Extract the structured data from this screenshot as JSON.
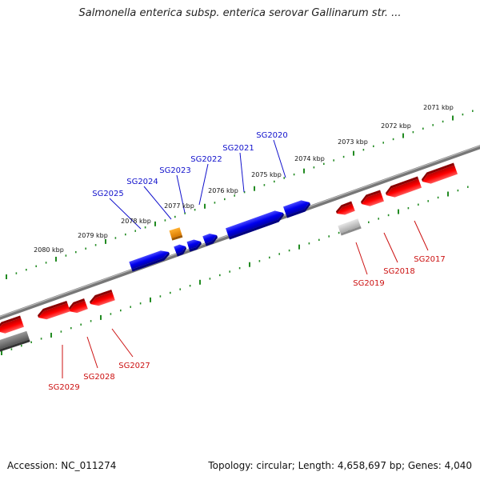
{
  "title": "Salmonella enterica subsp. enterica serovar Gallinarum str. ...",
  "footer": {
    "accession": "Accession: NC_011274",
    "topology": "Topology: circular; Length: 4,658,697 bp; Genes: 4,040"
  },
  "colors": {
    "forward_gene": "#0000ee",
    "reverse_gene": "#ff0000",
    "forward_label": "#1111cc",
    "reverse_label": "#cc1111",
    "scale_dots": "#228b22",
    "backbone": "#777777"
  },
  "kbp_labels": [
    "2071 kbp",
    "2072 kbp",
    "2073 kbp",
    "2074 kbp",
    "2075 kbp",
    "2076 kbp",
    "2077 kbp",
    "2078 kbp",
    "2079 kbp",
    "2080 kbp"
  ],
  "forward_genes": [
    "SG2020",
    "SG2021",
    "SG2022",
    "SG2023",
    "SG2024",
    "SG2025"
  ],
  "reverse_genes": [
    "SG2017",
    "SG2018",
    "SG2019",
    "SG2027",
    "SG2028",
    "SG2029"
  ]
}
